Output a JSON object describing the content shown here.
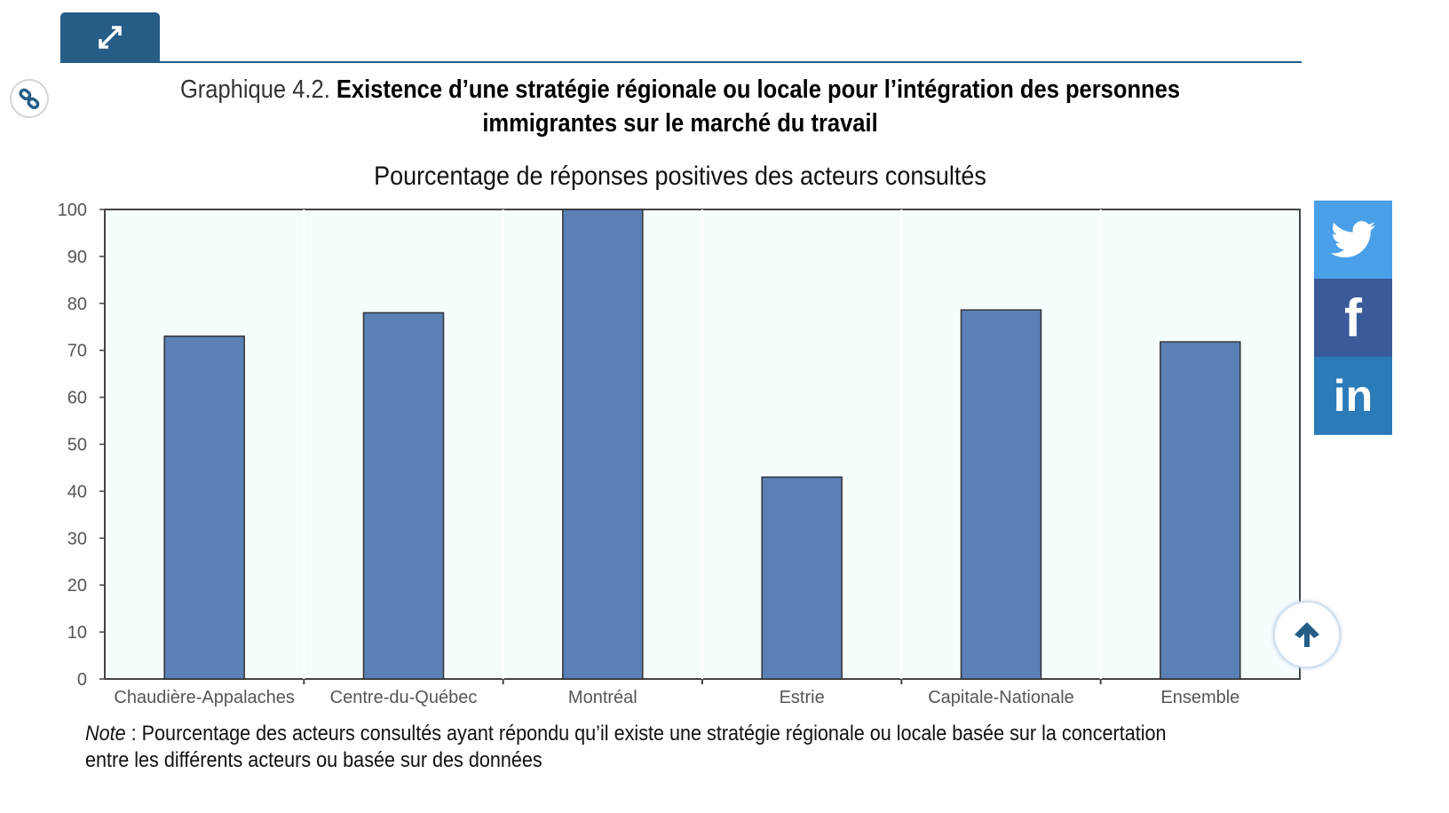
{
  "header": {
    "prefix": "Graphique 4.2.",
    "title": "Existence d’une stratégie régionale ou locale pour l’intégration des personnes immigrantes sur le marché du travail"
  },
  "social": {
    "twitter": "twitter-icon",
    "facebook": "facebook-icon",
    "linkedin": "linkedin-icon"
  },
  "colors": {
    "bar": "#5a80b6",
    "plot_bg": "#f5fdff",
    "brand": "#255d87"
  },
  "chart_data": {
    "type": "bar",
    "title": "Pourcentage de réponses positives des acteurs consultés",
    "categories": [
      "Chaudière-Appalaches",
      "Centre-du-Québec",
      "Montréal",
      "Estrie",
      "Capitale-Nationale",
      "Ensemble"
    ],
    "values": [
      73,
      78,
      100,
      43,
      78.6,
      71.8
    ],
    "xlabel": "",
    "ylabel": "",
    "ylim": [
      0,
      100
    ],
    "yticks": [
      "0",
      "10",
      "20",
      "30",
      "40",
      "50",
      "60",
      "70",
      "80",
      "90",
      "100"
    ],
    "grid": false
  },
  "note": {
    "label": "Note",
    "text": " : Pourcentage des acteurs consultés ayant répondu qu’il existe une stratégie régionale ou locale basée sur la concertation entre les différents acteurs ou basée sur des données"
  }
}
